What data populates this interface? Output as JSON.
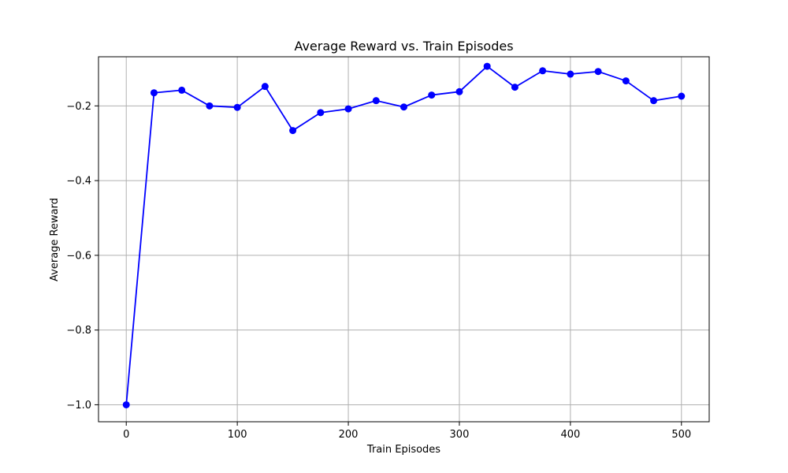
{
  "chart_data": {
    "type": "line",
    "title": "Average Reward vs. Train Episodes",
    "xlabel": "Train Episodes",
    "ylabel": "Average Reward",
    "x": [
      0,
      25,
      50,
      75,
      100,
      125,
      150,
      175,
      200,
      225,
      250,
      275,
      300,
      325,
      350,
      375,
      400,
      425,
      450,
      475,
      500
    ],
    "series": [
      {
        "values": [
          -1.0,
          -0.165,
          -0.158,
          -0.2,
          -0.204,
          -0.148,
          -0.266,
          -0.218,
          -0.208,
          -0.186,
          -0.203,
          -0.171,
          -0.162,
          -0.094,
          -0.15,
          -0.106,
          -0.115,
          -0.108,
          -0.133,
          -0.186,
          -0.174
        ],
        "color": "#0000ff",
        "marker": "circle"
      }
    ],
    "xlim": [
      -25,
      525
    ],
    "ylim": [
      -1.0455,
      -0.0685
    ],
    "xticks": [
      0,
      100,
      200,
      300,
      400,
      500
    ],
    "yticks": [
      -1.0,
      -0.8,
      -0.6,
      -0.4,
      -0.2
    ],
    "xtick_labels": [
      "0",
      "100",
      "200",
      "300",
      "400",
      "500"
    ],
    "ytick_labels": [
      "−1.0",
      "−0.8",
      "−0.6",
      "−0.4",
      "−0.2"
    ],
    "grid": true,
    "grid_color": "#b0b0b0",
    "legend": "none"
  }
}
